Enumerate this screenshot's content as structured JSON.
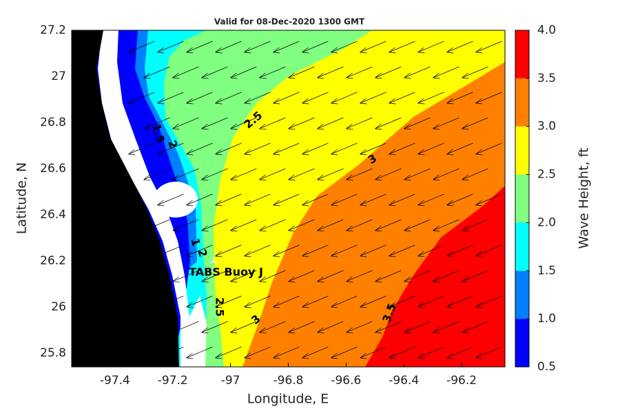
{
  "chart_data": {
    "type": "filled-contour-map",
    "title": "Valid for 08-Dec-2020 1300 GMT",
    "x_label": "Longitude, E",
    "y_label": "Latitude, N",
    "xlim": [
      -97.55,
      -96.05
    ],
    "ylim": [
      25.74,
      27.2
    ],
    "xticks": [
      -97.4,
      -97.2,
      -97,
      -96.8,
      -96.6,
      -96.4,
      -96.2
    ],
    "yticks": [
      25.8,
      26,
      26.2,
      26.4,
      26.6,
      26.8,
      27,
      27.2
    ],
    "colorbar": {
      "label": "Wave Height, ft",
      "lim": [
        0.5,
        4.0
      ],
      "ticks": [
        0.5,
        {
          "value": 1.0,
          "label": "1.0"
        },
        1.5,
        {
          "value": 2.0,
          "label": "2.0"
        },
        2.5,
        {
          "value": 3.0,
          "label": "3.0"
        },
        3.5,
        {
          "value": 4.0,
          "label": "4.0"
        }
      ],
      "colors": [
        "#0000ff",
        "#0080ff",
        "#00ffff",
        "#80ff80",
        "#ffff00",
        "#ff8000",
        "#ff0000"
      ]
    },
    "contour_labels": [
      "1.5",
      "2",
      "2.5",
      "3",
      "1",
      "2",
      "2.5",
      "3",
      "3.5"
    ],
    "station_label": "TABS Buoy J"
  }
}
